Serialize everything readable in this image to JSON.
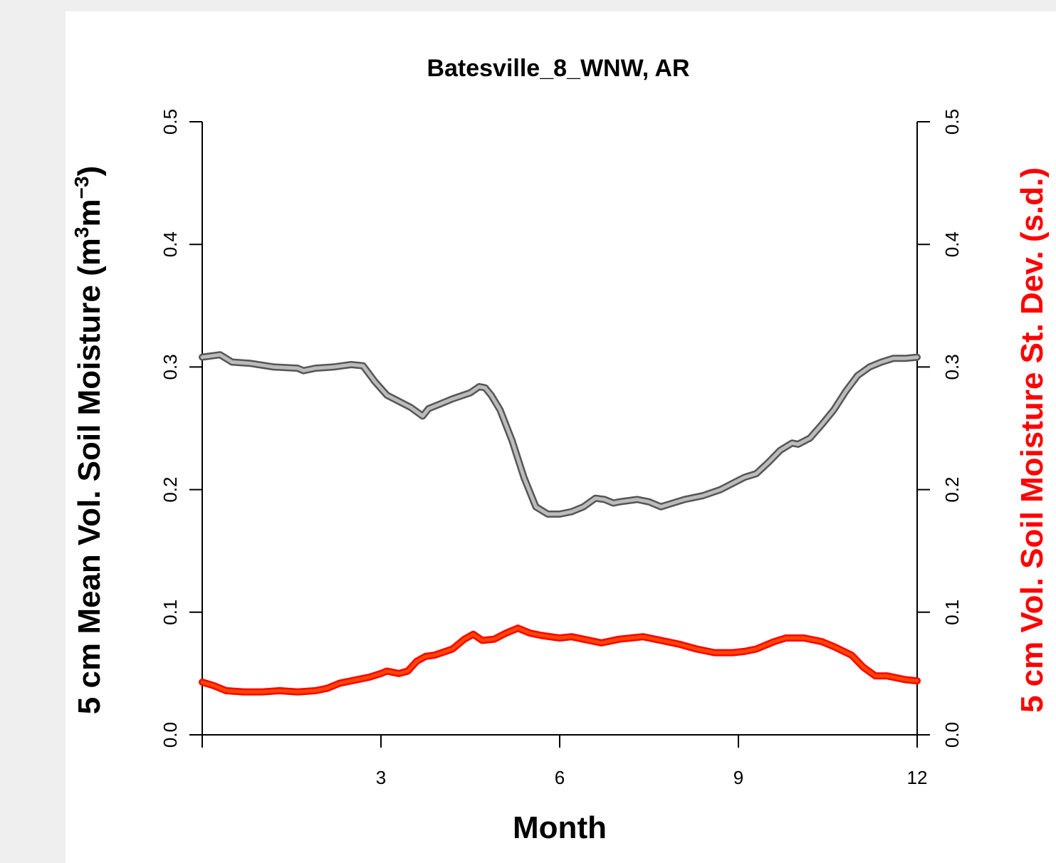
{
  "chart_data": {
    "type": "line",
    "title": "Batesville_8_WNW, AR",
    "xlabel": "Month",
    "ylabel_left": "5 cm Mean Vol. Soil Moisture (m",
    "ylabel_left_sup1": "3",
    "ylabel_left_mid": "m",
    "ylabel_left_sup2": "−3",
    "ylabel_left_end": ")",
    "ylabel_right": "5 cm Vol. Soil Moisture St. Dev. (s.d.)",
    "xlim": [
      0,
      12
    ],
    "ylim": [
      0,
      0.5
    ],
    "x_ticks": [
      3,
      6,
      9,
      12
    ],
    "x_tick_labels": [
      "3",
      "6",
      "9",
      "12"
    ],
    "y_ticks": [
      0,
      0.1,
      0.2,
      0.3,
      0.4,
      0.5
    ],
    "y_tick_labels": [
      "0.0",
      "0.1",
      "0.2",
      "0.3",
      "0.4",
      "0.5"
    ],
    "grid": false,
    "colors": {
      "mean": "#555555",
      "mean_fill": "#bbbbbb",
      "sd": "#ff0000",
      "sd_fill": "#ff4400"
    },
    "series": [
      {
        "axis": "left",
        "x": [
          0,
          0.3,
          0.5,
          0.8,
          1.2,
          1.6,
          1.7,
          1.9,
          2.2,
          2.5,
          2.7,
          2.9,
          3.1,
          3.5,
          3.7,
          3.8,
          4.0,
          4.2,
          4.5,
          4.65,
          4.75,
          4.85,
          5.0,
          5.2,
          5.4,
          5.6,
          5.8,
          6.0,
          6.2,
          6.4,
          6.6,
          6.75,
          6.9,
          7.0,
          7.3,
          7.5,
          7.7,
          7.9,
          8.1,
          8.4,
          8.7,
          8.9,
          9.1,
          9.3,
          9.5,
          9.7,
          9.9,
          10.0,
          10.2,
          10.4,
          10.6,
          10.8,
          11.0,
          11.2,
          11.4,
          11.6,
          11.8,
          12.0
        ],
        "values": [
          0.308,
          0.31,
          0.304,
          0.303,
          0.3,
          0.299,
          0.297,
          0.299,
          0.3,
          0.302,
          0.301,
          0.288,
          0.277,
          0.267,
          0.26,
          0.266,
          0.27,
          0.274,
          0.279,
          0.284,
          0.283,
          0.277,
          0.265,
          0.24,
          0.21,
          0.186,
          0.18,
          0.18,
          0.182,
          0.186,
          0.193,
          0.192,
          0.189,
          0.19,
          0.192,
          0.19,
          0.186,
          0.189,
          0.192,
          0.195,
          0.2,
          0.205,
          0.21,
          0.213,
          0.222,
          0.232,
          0.238,
          0.237,
          0.242,
          0.253,
          0.265,
          0.28,
          0.293,
          0.3,
          0.304,
          0.307,
          0.307,
          0.308
        ]
      },
      {
        "axis": "right",
        "x": [
          0,
          0.2,
          0.4,
          0.7,
          1.0,
          1.3,
          1.6,
          1.9,
          2.1,
          2.3,
          2.6,
          2.8,
          3.0,
          3.1,
          3.3,
          3.45,
          3.6,
          3.75,
          3.9,
          4.2,
          4.4,
          4.55,
          4.7,
          4.9,
          5.1,
          5.3,
          5.5,
          5.7,
          6.0,
          6.2,
          6.4,
          6.7,
          7.0,
          7.4,
          7.7,
          8.0,
          8.3,
          8.6,
          8.9,
          9.1,
          9.3,
          9.6,
          9.8,
          10.1,
          10.4,
          10.6,
          10.9,
          11.1,
          11.3,
          11.5,
          11.8,
          12.0
        ],
        "values": [
          0.043,
          0.04,
          0.036,
          0.035,
          0.035,
          0.036,
          0.035,
          0.036,
          0.038,
          0.042,
          0.045,
          0.047,
          0.05,
          0.052,
          0.05,
          0.052,
          0.06,
          0.064,
          0.065,
          0.07,
          0.078,
          0.082,
          0.077,
          0.078,
          0.083,
          0.087,
          0.083,
          0.081,
          0.079,
          0.08,
          0.078,
          0.075,
          0.078,
          0.08,
          0.077,
          0.074,
          0.07,
          0.067,
          0.067,
          0.068,
          0.07,
          0.076,
          0.079,
          0.079,
          0.076,
          0.072,
          0.065,
          0.055,
          0.048,
          0.048,
          0.045,
          0.044
        ]
      }
    ]
  }
}
